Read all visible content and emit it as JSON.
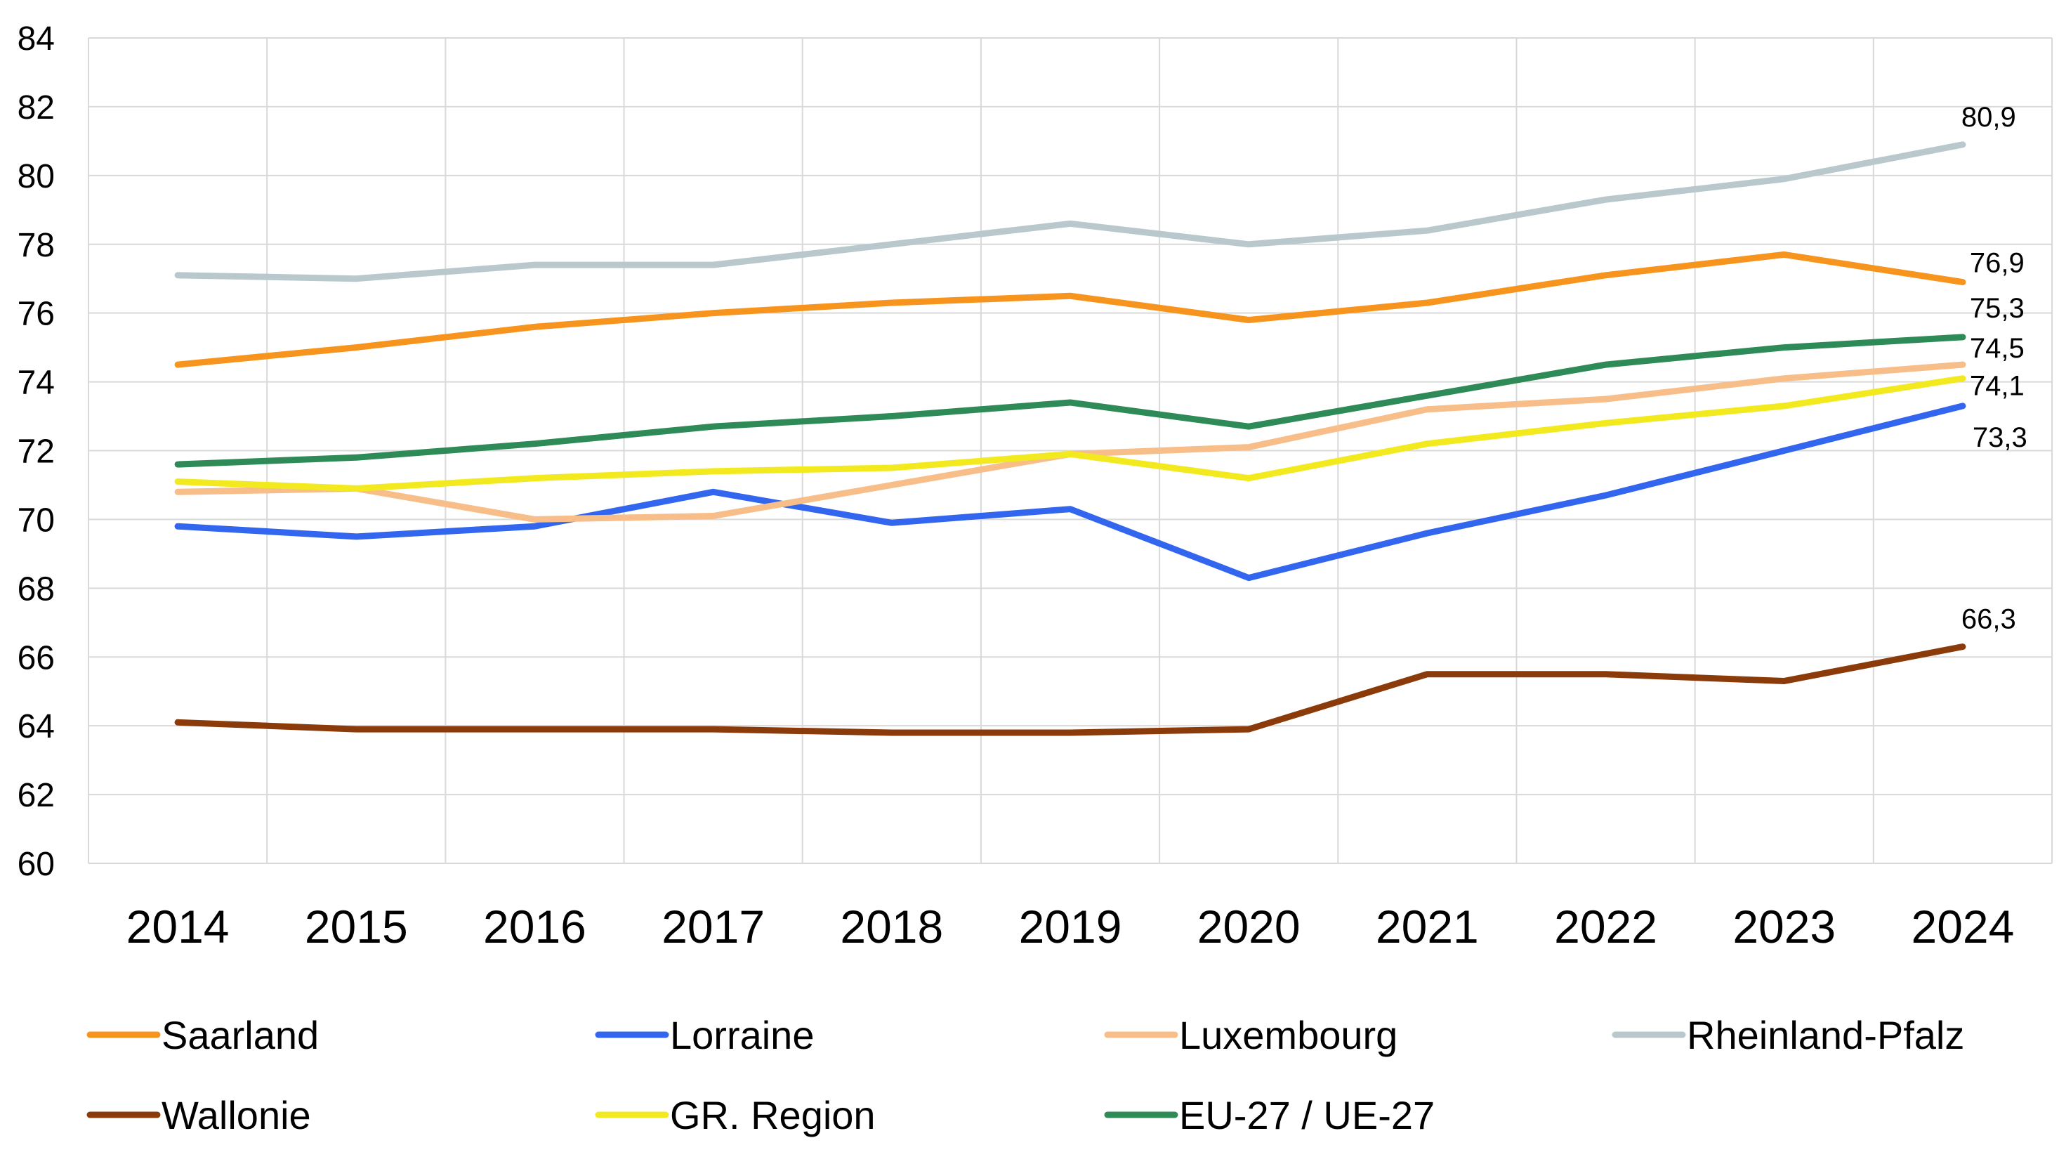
{
  "chart_data": {
    "type": "line",
    "title": "",
    "xlabel": "",
    "ylabel": "",
    "ylim": [
      60,
      84
    ],
    "yticks": [
      60,
      62,
      64,
      66,
      68,
      70,
      72,
      74,
      76,
      78,
      80,
      82,
      84
    ],
    "grid": true,
    "legend_position": "bottom",
    "categories": [
      "2014",
      "2015",
      "2016",
      "2017",
      "2018",
      "2019",
      "2020",
      "2021",
      "2022",
      "2023",
      "2024"
    ],
    "series": [
      {
        "name": "Saarland",
        "color": "#F7941D",
        "values": [
          74.5,
          75.0,
          75.6,
          76.0,
          76.3,
          76.5,
          75.8,
          76.3,
          77.1,
          77.7,
          76.9
        ],
        "end_label": "76,9"
      },
      {
        "name": "Lorraine",
        "color": "#3366EE",
        "values": [
          69.8,
          69.5,
          69.8,
          70.8,
          69.9,
          70.3,
          68.3,
          69.6,
          70.7,
          72.0,
          73.3
        ],
        "end_label": "73,3"
      },
      {
        "name": "Luxembourg",
        "color": "#F8BE8A",
        "values": [
          70.8,
          70.9,
          70.0,
          70.1,
          71.0,
          71.9,
          72.1,
          73.2,
          73.5,
          74.1,
          74.5
        ],
        "end_label": "74,5"
      },
      {
        "name": "Rheinland-Pfalz",
        "color": "#B8C8CC",
        "values": [
          77.1,
          77.0,
          77.4,
          77.4,
          78.0,
          78.6,
          78.0,
          78.4,
          79.3,
          79.9,
          80.9
        ],
        "end_label": "80,9"
      },
      {
        "name": "Wallonie",
        "color": "#8B3A0A",
        "values": [
          64.1,
          63.9,
          63.9,
          63.9,
          63.8,
          63.8,
          63.9,
          65.5,
          65.5,
          65.3,
          66.3
        ],
        "end_label": "66,3"
      },
      {
        "name": "GR. Region",
        "color": "#F2EA1E",
        "values": [
          71.1,
          70.9,
          71.2,
          71.4,
          71.5,
          71.9,
          71.2,
          72.2,
          72.8,
          73.3,
          74.1
        ],
        "end_label": "74,1"
      },
      {
        "name": "EU-27 / UE-27",
        "color": "#2E8B57",
        "values": [
          71.6,
          71.8,
          72.2,
          72.7,
          73.0,
          73.4,
          72.7,
          73.6,
          74.5,
          75.0,
          75.3
        ],
        "end_label": "75,3"
      }
    ]
  }
}
